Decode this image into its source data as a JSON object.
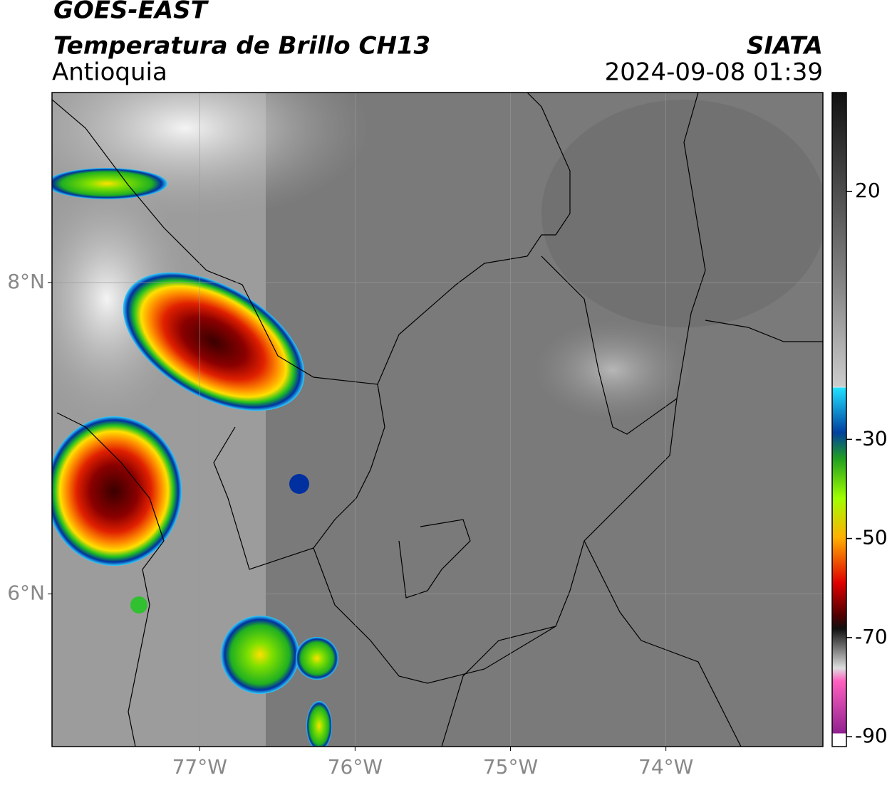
{
  "header": {
    "title": "GOES-EAST",
    "subtitle": "Temperatura de Brillo CH13",
    "region": "Antioquia",
    "source": "SIATA",
    "timestamp": "2024-09-08 01:39"
  },
  "chart_data": {
    "type": "map",
    "xlim": [
      -77.95,
      -72.99
    ],
    "ylim": [
      5.02,
      9.22
    ],
    "xticks": [
      {
        "value": -77,
        "label": "77°W"
      },
      {
        "value": -76,
        "label": "76°W"
      },
      {
        "value": -75,
        "label": "75°W"
      },
      {
        "value": -74,
        "label": "74°W"
      }
    ],
    "yticks": [
      {
        "value": 6,
        "label": "6°N"
      },
      {
        "value": 8,
        "label": "8°N"
      }
    ],
    "grid": true,
    "colorbar": {
      "lim": [
        -92,
        40
      ],
      "ticks": [
        20,
        -30,
        -50,
        -70,
        -90
      ]
    }
  }
}
